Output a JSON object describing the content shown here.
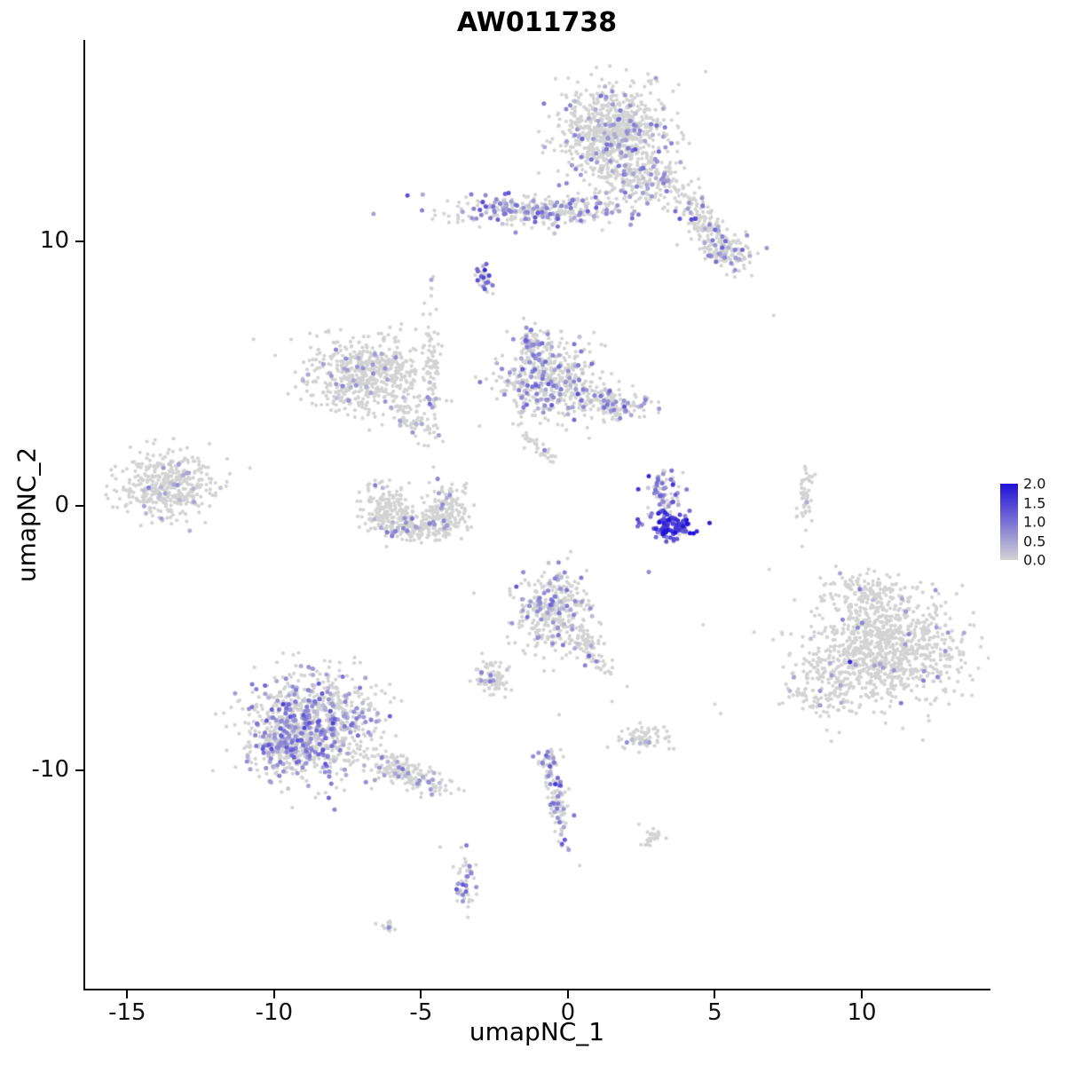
{
  "title": "AW011738",
  "axes": {
    "xlabel": "umapNC_1",
    "ylabel": "umapNC_2"
  },
  "chart_data": {
    "type": "scatter",
    "title": "AW011738",
    "xlabel": "umapNC_1",
    "ylabel": "umapNC_2",
    "x_ticks": [
      -15,
      -10,
      -5,
      0,
      5,
      10
    ],
    "y_ticks": [
      10,
      0,
      -10
    ],
    "x_range": [
      -16.46,
      14.35
    ],
    "y_range": [
      -18.29,
      17.62
    ],
    "grid": false,
    "legend_position": "right",
    "color_scale": {
      "low": "#D3D3D3",
      "high": "#2010D8",
      "vmin": 0.0,
      "vmax": 2.0,
      "legend_ticks": [
        "2.0",
        "1.5",
        "1.0",
        "0.5",
        "0.0"
      ]
    },
    "seed": 20231,
    "point_radius_px": 2.1,
    "clusters": [
      {
        "id": "top-main",
        "cx": 1.6,
        "cy": 14.1,
        "sx": 0.95,
        "sy": 0.85,
        "n": 800,
        "ef": 0.12,
        "em": 0.6,
        "es": 0.25,
        "emax": 1.3
      },
      {
        "id": "top-neck",
        "cx": 2.5,
        "cy": 12.3,
        "sx": 0.8,
        "sy": 0.5,
        "n": 180,
        "ef": 0.15,
        "em": 0.6,
        "es": 0.25,
        "emax": 1.3
      },
      {
        "id": "top-tail",
        "cx": 4.6,
        "cy": 10.7,
        "sx": 1.05,
        "sy": 0.3,
        "rot": -55,
        "n": 200,
        "ef": 0.22,
        "em": 0.7,
        "es": 0.3,
        "emax": 1.5
      },
      {
        "id": "top-tail-end",
        "cx": 5.55,
        "cy": 9.6,
        "sx": 0.45,
        "sy": 0.3,
        "n": 80,
        "ef": 0.22,
        "em": 0.7,
        "es": 0.3,
        "emax": 1.4
      },
      {
        "id": "band",
        "cx": -1.0,
        "cy": 11.2,
        "sx": 1.55,
        "sy": 0.3,
        "n": 320,
        "ef": 0.3,
        "em": 0.7,
        "es": 0.3,
        "emax": 1.5
      },
      {
        "id": "dense-dot",
        "cx": -2.85,
        "cy": 8.6,
        "sx": 0.13,
        "sy": 0.22,
        "n": 35,
        "ef": 0.5,
        "em": 1.0,
        "es": 0.4,
        "emax": 1.9
      },
      {
        "id": "midleft",
        "cx": -6.9,
        "cy": 5.0,
        "sx": 1.0,
        "sy": 0.7,
        "n": 560,
        "ef": 0.05,
        "em": 0.55,
        "es": 0.2,
        "emax": 1.1
      },
      {
        "id": "midleft-chain",
        "cx": -4.65,
        "cy": 5.0,
        "sx": 0.16,
        "sy": 1.5,
        "n": 85,
        "ef": 0.07,
        "em": 0.6,
        "es": 0.25,
        "emax": 1.2
      },
      {
        "id": "midleft-arm",
        "cx": -5.4,
        "cy": 3.4,
        "sx": 0.7,
        "sy": 0.22,
        "rot": -40,
        "n": 70,
        "ef": 0.1,
        "em": 0.6,
        "es": 0.25,
        "emax": 1.2
      },
      {
        "id": "center-mid",
        "cx": -0.7,
        "cy": 4.8,
        "sx": 0.85,
        "sy": 0.7,
        "n": 450,
        "ef": 0.22,
        "em": 0.65,
        "es": 0.3,
        "emax": 1.5
      },
      {
        "id": "center-arm",
        "cx": 1.4,
        "cy": 3.9,
        "sx": 0.8,
        "sy": 0.28,
        "rot": -12,
        "n": 160,
        "ef": 0.22,
        "em": 0.65,
        "es": 0.3,
        "emax": 1.4
      },
      {
        "id": "center-tip",
        "cx": -1.3,
        "cy": 6.2,
        "sx": 0.3,
        "sy": 0.4,
        "n": 70,
        "ef": 0.3,
        "em": 0.7,
        "es": 0.3,
        "emax": 1.5
      },
      {
        "id": "mid-streak",
        "cx": -1.1,
        "cy": 2.3,
        "sx": 0.5,
        "sy": 0.13,
        "rot": -40,
        "n": 35,
        "ef": 0.05,
        "em": 0.5,
        "es": 0.2,
        "emax": 1.0
      },
      {
        "id": "left",
        "cx": -13.6,
        "cy": 0.75,
        "sx": 0.8,
        "sy": 0.62,
        "n": 430,
        "ef": 0.06,
        "em": 0.55,
        "es": 0.25,
        "emax": 1.2
      },
      {
        "id": "u-left",
        "cx": -6.2,
        "cy": -0.05,
        "sx": 0.4,
        "sy": 0.5,
        "n": 150,
        "ef": 0.05,
        "em": 0.55,
        "es": 0.2,
        "emax": 1.1
      },
      {
        "id": "u-bottom",
        "cx": -5.2,
        "cy": -0.8,
        "sx": 0.62,
        "sy": 0.26,
        "n": 180,
        "ef": 0.1,
        "em": 0.6,
        "es": 0.25,
        "emax": 1.2
      },
      {
        "id": "u-right",
        "cx": -4.15,
        "cy": -0.1,
        "sx": 0.35,
        "sy": 0.5,
        "n": 150,
        "ef": 0.06,
        "em": 0.55,
        "es": 0.2,
        "emax": 1.1
      },
      {
        "id": "hot-core",
        "cx": 3.55,
        "cy": -0.78,
        "sx": 0.38,
        "sy": 0.26,
        "n": 120,
        "ef": 0.9,
        "em": 1.4,
        "es": 0.4,
        "emax": 2.0
      },
      {
        "id": "hot-fan",
        "cx": 3.25,
        "cy": 0.5,
        "sx": 0.32,
        "sy": 0.5,
        "n": 75,
        "ef": 0.65,
        "em": 0.9,
        "es": 0.35,
        "emax": 1.8
      },
      {
        "id": "right-streak",
        "cx": 8.05,
        "cy": 0.3,
        "sx": 0.13,
        "sy": 0.55,
        "n": 50,
        "ef": 0.03,
        "em": 0.5,
        "es": 0.2,
        "emax": 1.0
      },
      {
        "id": "center-low",
        "cx": -0.5,
        "cy": -4.0,
        "sx": 0.68,
        "sy": 0.78,
        "n": 340,
        "ef": 0.15,
        "em": 0.65,
        "es": 0.3,
        "emax": 1.4
      },
      {
        "id": "center-low-tail",
        "cx": 0.75,
        "cy": -5.5,
        "sx": 0.55,
        "sy": 0.2,
        "rot": -58,
        "n": 70,
        "ef": 0.12,
        "em": 0.6,
        "es": 0.25,
        "emax": 1.3
      },
      {
        "id": "small-left-low",
        "cx": -2.55,
        "cy": -6.5,
        "sx": 0.32,
        "sy": 0.32,
        "n": 80,
        "ef": 0.08,
        "em": 0.6,
        "es": 0.25,
        "emax": 1.2
      },
      {
        "id": "right-big",
        "cx": 10.8,
        "cy": -5.4,
        "sx": 1.25,
        "sy": 1.05,
        "n": 950,
        "ef": 0.03,
        "em": 0.55,
        "es": 0.25,
        "emax": 1.2
      },
      {
        "id": "right-big-top",
        "cx": 10.2,
        "cy": -3.3,
        "sx": 0.75,
        "sy": 0.4,
        "n": 120,
        "ef": 0.03,
        "em": 0.55,
        "es": 0.2,
        "emax": 1.1
      },
      {
        "id": "right-big-bl",
        "cx": 8.7,
        "cy": -6.9,
        "sx": 0.55,
        "sy": 0.5,
        "n": 110,
        "ef": 0.03,
        "em": 0.55,
        "es": 0.2,
        "emax": 1.1
      },
      {
        "id": "botleft",
        "cx": -8.6,
        "cy": -8.2,
        "sx": 1.15,
        "sy": 1.0,
        "n": 820,
        "ef": 0.28,
        "em": 0.65,
        "es": 0.3,
        "emax": 1.5
      },
      {
        "id": "botleft-dense",
        "cx": -9.7,
        "cy": -9.1,
        "sx": 0.55,
        "sy": 0.5,
        "n": 220,
        "ef": 0.33,
        "em": 0.7,
        "es": 0.3,
        "emax": 1.5
      },
      {
        "id": "botleft-tail",
        "cx": -5.5,
        "cy": -10.1,
        "sx": 0.85,
        "sy": 0.26,
        "rot": -25,
        "n": 180,
        "ef": 0.12,
        "em": 0.6,
        "es": 0.25,
        "emax": 1.3
      },
      {
        "id": "small-center-low",
        "cx": 2.5,
        "cy": -8.8,
        "sx": 0.42,
        "sy": 0.24,
        "n": 70,
        "ef": 0.12,
        "em": 0.6,
        "es": 0.25,
        "emax": 1.2
      },
      {
        "id": "streak-top",
        "cx": -0.6,
        "cy": -9.7,
        "sx": 0.22,
        "sy": 0.26,
        "n": 40,
        "ef": 0.25,
        "em": 0.7,
        "es": 0.3,
        "emax": 1.4
      },
      {
        "id": "streak",
        "cx": -0.35,
        "cy": -11.2,
        "sx": 0.16,
        "sy": 0.75,
        "rot": 8,
        "n": 90,
        "ef": 0.3,
        "em": 0.8,
        "es": 0.3,
        "emax": 1.6
      },
      {
        "id": "tiny-right-low",
        "cx": 2.9,
        "cy": -12.5,
        "sx": 0.22,
        "sy": 0.2,
        "n": 28,
        "ef": 0.1,
        "em": 0.6,
        "es": 0.2,
        "emax": 1.1
      },
      {
        "id": "tiny-left-low",
        "cx": -3.5,
        "cy": -14.3,
        "sx": 0.2,
        "sy": 0.5,
        "n": 55,
        "ef": 0.22,
        "em": 0.8,
        "es": 0.3,
        "emax": 1.5
      },
      {
        "id": "tiny-bottom",
        "cx": -6.1,
        "cy": -15.9,
        "sx": 0.16,
        "sy": 0.13,
        "n": 15,
        "ef": 0.08,
        "em": 0.5,
        "es": 0.2,
        "emax": 1.0
      }
    ],
    "singles": [
      {
        "x": 2.75,
        "y": -2.5,
        "v": 0.7
      },
      {
        "x": 9.6,
        "y": -5.9,
        "v": 1.8
      },
      {
        "x": 12.1,
        "y": -6.6,
        "v": 0.9
      },
      {
        "x": 9.35,
        "y": -4.3,
        "v": 0.8
      },
      {
        "x": 11.5,
        "y": -4.0,
        "v": 0.6
      },
      {
        "x": -10.7,
        "y": 6.3,
        "v": 0
      },
      {
        "x": 7.0,
        "y": 7.2,
        "v": 0
      },
      {
        "x": 6.85,
        "y": -2.4,
        "v": 0
      },
      {
        "x": 5.0,
        "y": -7.5,
        "v": 0
      },
      {
        "x": 5.2,
        "y": -7.85,
        "v": 0
      },
      {
        "x": 4.6,
        "y": -4.5,
        "v": 0
      },
      {
        "x": 1.5,
        "y": -7.4,
        "v": 0
      },
      {
        "x": -0.3,
        "y": -7.9,
        "v": 0
      },
      {
        "x": -3.2,
        "y": -3.3,
        "v": 0
      },
      {
        "x": -12.2,
        "y": 2.35,
        "v": 0
      },
      {
        "x": -4.35,
        "y": -12.9,
        "v": 0
      },
      {
        "x": 0.4,
        "y": -13.6,
        "v": 0
      }
    ]
  }
}
